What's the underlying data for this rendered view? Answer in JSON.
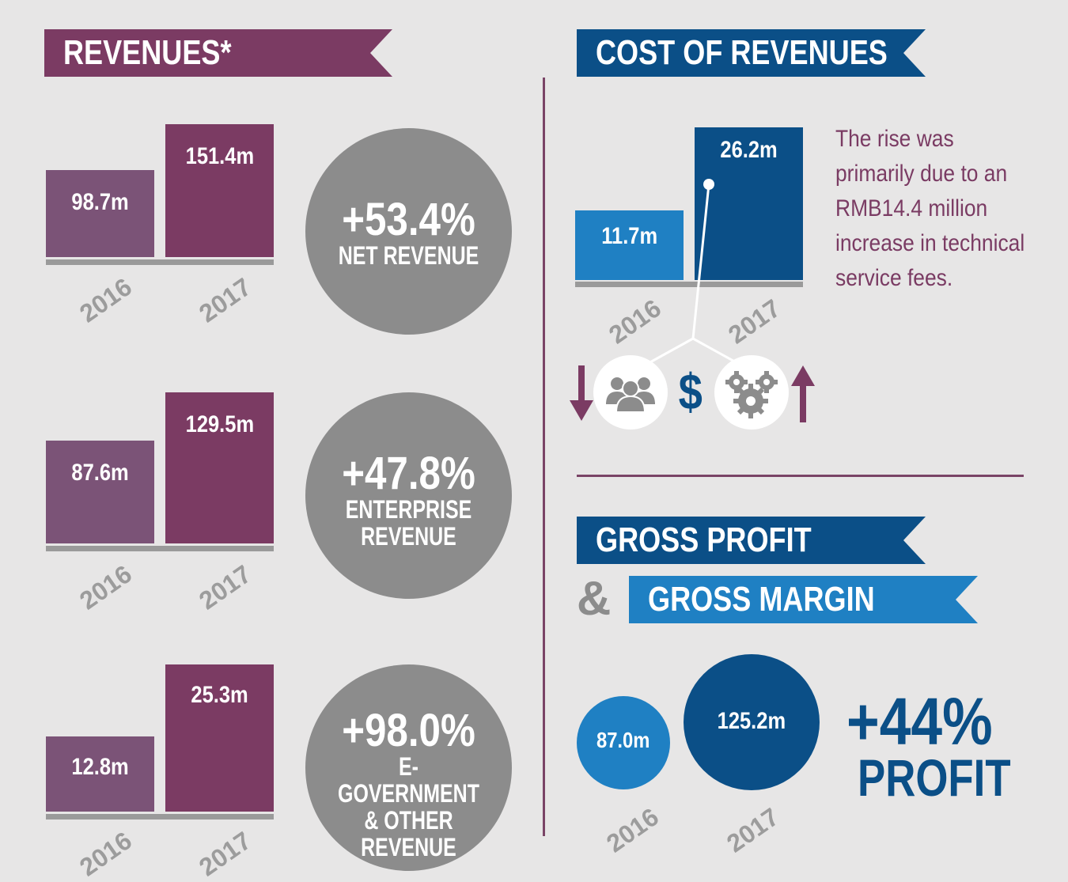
{
  "revenues_section": {
    "title": "REVENUES*",
    "groups": [
      {
        "change": "+53.4%",
        "label": "NET REVENUE",
        "v2016": "98.7m",
        "v2017": "151.4m"
      },
      {
        "change": "+47.8%",
        "label": "ENTERPRISE\nREVENUE",
        "v2016": "87.6m",
        "v2017": "129.5m"
      },
      {
        "change": "+98.0%",
        "label": "E-GOVERNMENT\n& OTHER\nREVENUE",
        "v2016": "12.8m",
        "v2017": "25.3m"
      }
    ]
  },
  "cost_section": {
    "title": "COST OF REVENUES",
    "v2016": "11.7m",
    "v2017": "26.2m",
    "note": "The rise was primarily due to an RMB14.4 million increase in technical service fees.",
    "icons": [
      "down-arrow-icon",
      "people-icon",
      "dollar-icon",
      "gears-icon",
      "up-arrow-icon"
    ],
    "dollar_symbol": "$"
  },
  "gross_section": {
    "title1": "GROSS PROFIT",
    "ampersand": "&",
    "title2": "GROSS MARGIN",
    "v2016": "87.0m",
    "v2017": "125.2m",
    "change": "+44%",
    "change_label": "PROFIT"
  },
  "colors": {
    "purple": "#7b3b63",
    "purple_light": "#7b5377",
    "navy": "#0b4f87",
    "blue": "#1f80c3",
    "gray_circle": "#8c8c8c",
    "background": "#e7e6e6"
  },
  "chart_data": [
    {
      "type": "bar",
      "title": "NET REVENUE",
      "categories": [
        "2016",
        "2017"
      ],
      "values": [
        98.7,
        151.4
      ],
      "unit": "m",
      "change": "+53.4%"
    },
    {
      "type": "bar",
      "title": "ENTERPRISE REVENUE",
      "categories": [
        "2016",
        "2017"
      ],
      "values": [
        87.6,
        129.5
      ],
      "unit": "m",
      "change": "+47.8%"
    },
    {
      "type": "bar",
      "title": "E-GOVERNMENT & OTHER REVENUE",
      "categories": [
        "2016",
        "2017"
      ],
      "values": [
        12.8,
        25.3
      ],
      "unit": "m",
      "change": "+98.0%"
    },
    {
      "type": "bar",
      "title": "COST OF REVENUES",
      "categories": [
        "2016",
        "2017"
      ],
      "values": [
        11.7,
        26.2
      ],
      "unit": "m"
    },
    {
      "type": "bubble",
      "title": "GROSS PROFIT",
      "categories": [
        "2016",
        "2017"
      ],
      "values": [
        87.0,
        125.2
      ],
      "unit": "m",
      "change": "+44%"
    }
  ]
}
